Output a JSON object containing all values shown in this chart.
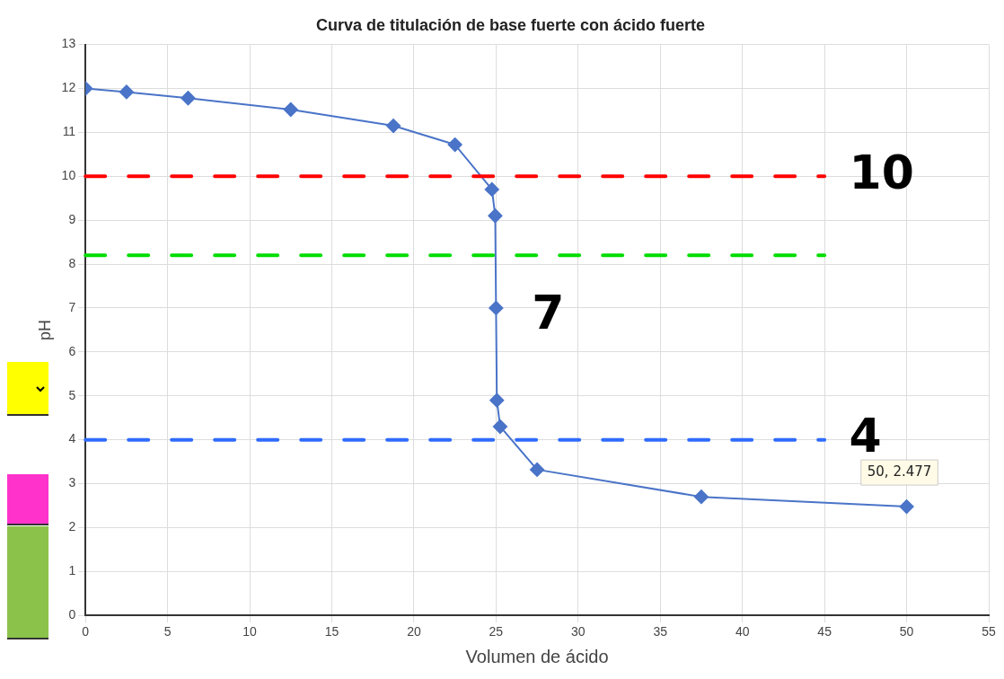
{
  "chart_data": {
    "type": "line",
    "title": "Curva de titulación de base fuerte con ácido fuerte",
    "xlabel": "Volumen de ácido",
    "ylabel": "pH",
    "xlim": [
      0,
      55
    ],
    "xticks": [
      0,
      5,
      10,
      15,
      20,
      25,
      30,
      35,
      40,
      45,
      50,
      55
    ],
    "ylim": [
      0,
      13
    ],
    "yticks": [
      0,
      1,
      2,
      3,
      4,
      5,
      6,
      7,
      8,
      9,
      10,
      11,
      12,
      13
    ],
    "grid": true,
    "marker": "diamond",
    "line_style": "solid",
    "series": [
      {
        "color": "#4a74c8",
        "x": [
          0,
          2.5,
          6.25,
          12.5,
          18.75,
          22.5,
          24.75,
          24.95,
          25,
          25.05,
          25.25,
          27.5,
          37.5,
          50
        ],
        "values": [
          12,
          11.92,
          11.78,
          11.52,
          11.15,
          10.72,
          9.7,
          9.1,
          7,
          4.9,
          4.3,
          3.32,
          2.7,
          2.477
        ]
      }
    ],
    "ref_lines": [
      {
        "axis": "y",
        "value": 10,
        "label": "10",
        "color": "#ff0000",
        "line_style": "dashed"
      },
      {
        "axis": "y",
        "value": 8.2,
        "color": "#00dd00",
        "line_style": "dashed"
      },
      {
        "axis": "y",
        "value": 4,
        "label": "4",
        "color": "#2f6bff",
        "line_style": "dashed"
      }
    ],
    "annotations": [
      {
        "text": "7",
        "x": 25,
        "y": 7
      },
      {
        "text": "50, 2.477",
        "x": 50,
        "y": 2.477
      }
    ]
  }
}
